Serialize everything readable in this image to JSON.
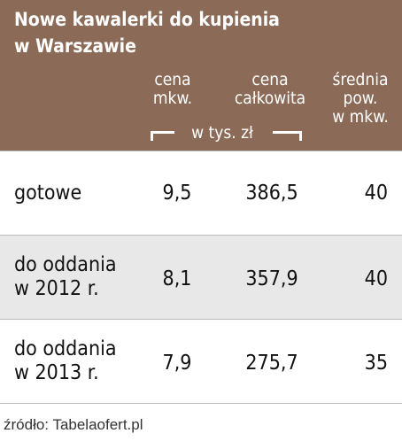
{
  "header": {
    "title": [
      "Nowe kawalerki do kupienia",
      "w Warszawie"
    ],
    "columns": [
      [
        "cena",
        "mkw."
      ],
      [
        "cena",
        "całkowita"
      ],
      [
        "średnia",
        "pow.",
        "w mkw."
      ]
    ],
    "unit": "w tys. zł"
  },
  "table": {
    "rows": [
      [
        [
          "gotowe"
        ],
        "9,5",
        "386,5",
        "40"
      ],
      [
        [
          "do oddania",
          "w 2012 r."
        ],
        "8,1",
        "357,9",
        "40"
      ],
      [
        [
          "do oddania",
          "w 2013 r."
        ],
        "7,9",
        "275,7",
        "35"
      ]
    ]
  },
  "source": "źródło: Tabelaofert.pl"
}
